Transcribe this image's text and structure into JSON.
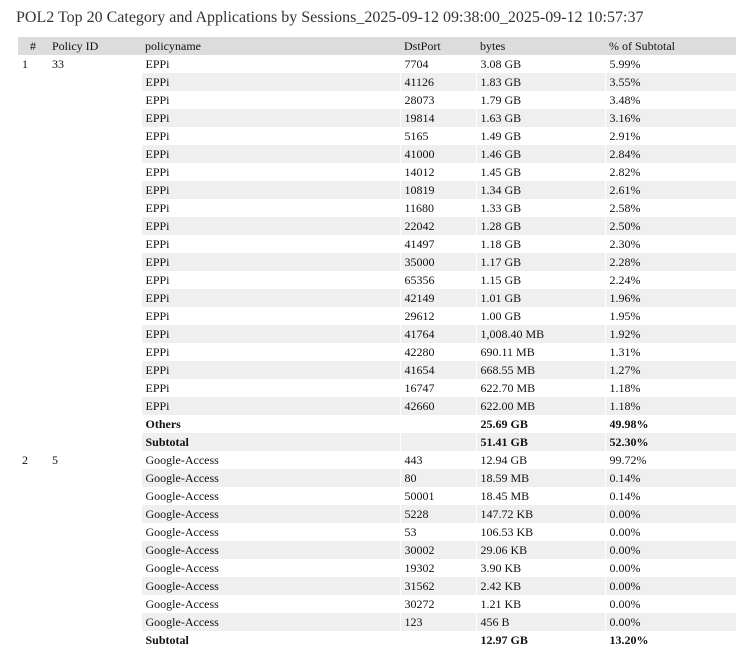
{
  "title": "POL2 Top 20 Category and Applications by Sessions_2025-09-12 09:38:00_2025-09-12 10:57:37",
  "columns": [
    "#",
    "Policy ID",
    "policyname",
    "DstPort",
    "bytes",
    "% of Subtotal"
  ],
  "groups": [
    {
      "index": "1",
      "policy_id": "33",
      "rows": [
        {
          "policyname": "EPPi",
          "dstport": "7704",
          "bytes": "3.08 GB",
          "pct": "5.99%"
        },
        {
          "policyname": "EPPi",
          "dstport": "41126",
          "bytes": "1.83 GB",
          "pct": "3.55%"
        },
        {
          "policyname": "EPPi",
          "dstport": "28073",
          "bytes": "1.79 GB",
          "pct": "3.48%"
        },
        {
          "policyname": "EPPi",
          "dstport": "19814",
          "bytes": "1.63 GB",
          "pct": "3.16%"
        },
        {
          "policyname": "EPPi",
          "dstport": "5165",
          "bytes": "1.49 GB",
          "pct": "2.91%"
        },
        {
          "policyname": "EPPi",
          "dstport": "41000",
          "bytes": "1.46 GB",
          "pct": "2.84%"
        },
        {
          "policyname": "EPPi",
          "dstport": "14012",
          "bytes": "1.45 GB",
          "pct": "2.82%"
        },
        {
          "policyname": "EPPi",
          "dstport": "10819",
          "bytes": "1.34 GB",
          "pct": "2.61%"
        },
        {
          "policyname": "EPPi",
          "dstport": "11680",
          "bytes": "1.33 GB",
          "pct": "2.58%"
        },
        {
          "policyname": "EPPi",
          "dstport": "22042",
          "bytes": "1.28 GB",
          "pct": "2.50%"
        },
        {
          "policyname": "EPPi",
          "dstport": "41497",
          "bytes": "1.18 GB",
          "pct": "2.30%"
        },
        {
          "policyname": "EPPi",
          "dstport": "35000",
          "bytes": "1.17 GB",
          "pct": "2.28%"
        },
        {
          "policyname": "EPPi",
          "dstport": "65356",
          "bytes": "1.15 GB",
          "pct": "2.24%"
        },
        {
          "policyname": "EPPi",
          "dstport": "42149",
          "bytes": "1.01 GB",
          "pct": "1.96%"
        },
        {
          "policyname": "EPPi",
          "dstport": "29612",
          "bytes": "1.00 GB",
          "pct": "1.95%"
        },
        {
          "policyname": "EPPi",
          "dstport": "41764",
          "bytes": "1,008.40 MB",
          "pct": "1.92%"
        },
        {
          "policyname": "EPPi",
          "dstport": "42280",
          "bytes": "690.11 MB",
          "pct": "1.31%"
        },
        {
          "policyname": "EPPi",
          "dstport": "41654",
          "bytes": "668.55 MB",
          "pct": "1.27%"
        },
        {
          "policyname": "EPPi",
          "dstport": "16747",
          "bytes": "622.70 MB",
          "pct": "1.18%"
        },
        {
          "policyname": "EPPi",
          "dstport": "42660",
          "bytes": "622.00 MB",
          "pct": "1.18%"
        }
      ],
      "others": {
        "label": "Others",
        "bytes": "25.69 GB",
        "pct": "49.98%"
      },
      "subtotal": {
        "label": "Subtotal",
        "bytes": "51.41 GB",
        "pct": "52.30%"
      }
    },
    {
      "index": "2",
      "policy_id": "5",
      "rows": [
        {
          "policyname": "Google-Access",
          "dstport": "443",
          "bytes": "12.94 GB",
          "pct": "99.72%"
        },
        {
          "policyname": "Google-Access",
          "dstport": "80",
          "bytes": "18.59 MB",
          "pct": "0.14%"
        },
        {
          "policyname": "Google-Access",
          "dstport": "50001",
          "bytes": "18.45 MB",
          "pct": "0.14%"
        },
        {
          "policyname": "Google-Access",
          "dstport": "5228",
          "bytes": "147.72 KB",
          "pct": "0.00%"
        },
        {
          "policyname": "Google-Access",
          "dstport": "53",
          "bytes": "106.53 KB",
          "pct": "0.00%"
        },
        {
          "policyname": "Google-Access",
          "dstport": "30002",
          "bytes": "29.06 KB",
          "pct": "0.00%"
        },
        {
          "policyname": "Google-Access",
          "dstport": "19302",
          "bytes": "3.90 KB",
          "pct": "0.00%"
        },
        {
          "policyname": "Google-Access",
          "dstport": "31562",
          "bytes": "2.42 KB",
          "pct": "0.00%"
        },
        {
          "policyname": "Google-Access",
          "dstport": "30272",
          "bytes": "1.21 KB",
          "pct": "0.00%"
        },
        {
          "policyname": "Google-Access",
          "dstport": "123",
          "bytes": "456 B",
          "pct": "0.00%"
        }
      ],
      "others": null,
      "subtotal": {
        "label": "Subtotal",
        "bytes": "12.97 GB",
        "pct": "13.20%"
      }
    }
  ]
}
